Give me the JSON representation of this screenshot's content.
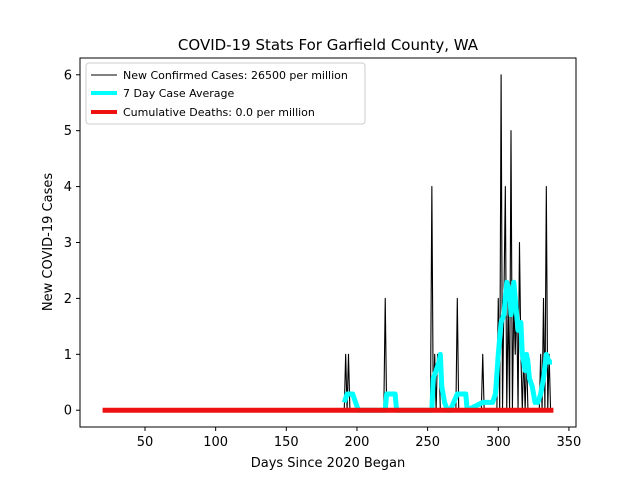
{
  "chart_data": {
    "type": "line",
    "title": "COVID-19 Stats For Garfield County, WA",
    "xlabel": "Days Since 2020 Began",
    "ylabel": "New COVID-19 Cases",
    "xlim": [
      4,
      355
    ],
    "ylim": [
      -0.3,
      6.3
    ],
    "xticks": [
      50,
      100,
      150,
      200,
      250,
      300,
      350
    ],
    "yticks": [
      0,
      1,
      2,
      3,
      4,
      5,
      6
    ],
    "grid": false,
    "legend_position": "top-left",
    "series": [
      {
        "name": "New Confirmed Cases: 26500 per million",
        "color": "#000000",
        "points": [
          [
            20,
            0
          ],
          [
            191,
            0
          ],
          [
            192,
            1
          ],
          [
            193,
            0
          ],
          [
            194,
            1
          ],
          [
            195,
            0
          ],
          [
            219,
            0
          ],
          [
            220,
            2
          ],
          [
            221,
            0
          ],
          [
            252,
            0
          ],
          [
            253,
            4
          ],
          [
            254,
            0
          ],
          [
            255,
            1
          ],
          [
            256,
            0
          ],
          [
            257,
            1
          ],
          [
            258,
            1
          ],
          [
            259,
            0
          ],
          [
            270,
            0
          ],
          [
            271,
            2
          ],
          [
            272,
            0
          ],
          [
            288,
            0
          ],
          [
            289,
            1
          ],
          [
            290,
            0
          ],
          [
            299,
            0
          ],
          [
            300,
            2
          ],
          [
            301,
            0
          ],
          [
            302,
            6
          ],
          [
            303,
            0
          ],
          [
            304,
            2
          ],
          [
            305,
            4
          ],
          [
            306,
            0
          ],
          [
            307,
            2
          ],
          [
            308,
            0
          ],
          [
            309,
            5
          ],
          [
            310,
            0
          ],
          [
            311,
            2
          ],
          [
            312,
            1
          ],
          [
            313,
            2
          ],
          [
            314,
            0
          ],
          [
            315,
            3
          ],
          [
            316,
            1
          ],
          [
            317,
            0
          ],
          [
            318,
            1
          ],
          [
            319,
            0
          ],
          [
            320,
            1
          ],
          [
            321,
            0
          ],
          [
            329,
            0
          ],
          [
            330,
            1
          ],
          [
            331,
            0
          ],
          [
            332,
            2
          ],
          [
            333,
            0
          ],
          [
            334,
            4
          ],
          [
            335,
            0
          ],
          [
            336,
            1
          ],
          [
            337,
            0
          ],
          [
            339,
            0
          ]
        ]
      },
      {
        "name": "7 Day Case Average",
        "color": "#00ffff",
        "points": [
          [
            191,
            0.14
          ],
          [
            193,
            0.29
          ],
          [
            195,
            0.29
          ],
          [
            197,
            0.29
          ],
          [
            199,
            0.14
          ],
          [
            201,
            0
          ],
          [
            220,
            0
          ],
          [
            221,
            0.29
          ],
          [
            223,
            0.29
          ],
          [
            225,
            0.29
          ],
          [
            227,
            0.29
          ],
          [
            228,
            0
          ],
          [
            253,
            0
          ],
          [
            254,
            0.57
          ],
          [
            256,
            0.71
          ],
          [
            258,
            0.86
          ],
          [
            259,
            1.0
          ],
          [
            260,
            0.43
          ],
          [
            262,
            0.14
          ],
          [
            264,
            0
          ],
          [
            266,
            0
          ],
          [
            271,
            0.29
          ],
          [
            273,
            0.29
          ],
          [
            275,
            0.29
          ],
          [
            277,
            0.29
          ],
          [
            278,
            0
          ],
          [
            289,
            0.14
          ],
          [
            291,
            0.14
          ],
          [
            293,
            0.14
          ],
          [
            296,
            0.14
          ],
          [
            298,
            0.29
          ],
          [
            300,
            1.0
          ],
          [
            302,
            1.57
          ],
          [
            304,
            1.71
          ],
          [
            305,
            2.0
          ],
          [
            306,
            2.29
          ],
          [
            308,
            2.14
          ],
          [
            309,
            1.71
          ],
          [
            310,
            1.86
          ],
          [
            311,
            2.29
          ],
          [
            312,
            2.0
          ],
          [
            313,
            1.71
          ],
          [
            314,
            1.43
          ],
          [
            316,
            1.57
          ],
          [
            317,
            1.0
          ],
          [
            318,
            0.86
          ],
          [
            319,
            0.71
          ],
          [
            320,
            1.0
          ],
          [
            321,
            0.86
          ],
          [
            322,
            0.57
          ],
          [
            324,
            0.43
          ],
          [
            326,
            0.14
          ],
          [
            328,
            0.14
          ],
          [
            330,
            0.29
          ],
          [
            332,
            0.57
          ],
          [
            334,
            1.0
          ],
          [
            336,
            0.86
          ],
          [
            338,
            0.86
          ]
        ]
      },
      {
        "name": "Cumulative Deaths: 0.0 per million",
        "color": "#ee1111",
        "points": [
          [
            20,
            0
          ],
          [
            339,
            0
          ]
        ]
      }
    ]
  }
}
